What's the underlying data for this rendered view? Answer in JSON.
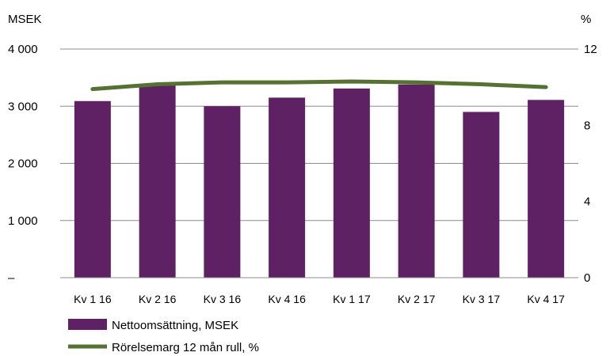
{
  "chart_data": {
    "type": "bar",
    "categories": [
      "Kv 1 16",
      "Kv 2 16",
      "Kv 3 16",
      "Kv 4 16",
      "Kv 1 17",
      "Kv 2 17",
      "Kv 3 17",
      "Kv 4 17"
    ],
    "series": [
      {
        "name": "Nettoomsättning, MSEK",
        "type": "bar",
        "axis": "left",
        "color": "#5e2164",
        "values": [
          3090,
          3370,
          3000,
          3150,
          3310,
          3380,
          2900,
          3110
        ]
      },
      {
        "name": "Rörelsemarg 12 mån rull, %",
        "type": "line",
        "axis": "right",
        "color": "#567233",
        "values": [
          9.9,
          10.15,
          10.25,
          10.25,
          10.3,
          10.25,
          10.15,
          10.0
        ]
      }
    ],
    "ylabel_left": "MSEK",
    "ylabel_right": "%",
    "ylim_left": [
      0,
      4000
    ],
    "ylim_right": [
      0,
      12
    ],
    "yticks_left": [
      {
        "value": 0,
        "label": "–"
      },
      {
        "value": 1000,
        "label": "1 000"
      },
      {
        "value": 2000,
        "label": "2 000"
      },
      {
        "value": 3000,
        "label": "3 000"
      },
      {
        "value": 4000,
        "label": "4 000"
      }
    ],
    "yticks_right": [
      {
        "value": 0,
        "label": "0"
      },
      {
        "value": 4,
        "label": "4"
      },
      {
        "value": 8,
        "label": "8"
      },
      {
        "value": 12,
        "label": "12"
      }
    ],
    "grid": true,
    "legend_position": "bottom-left"
  }
}
